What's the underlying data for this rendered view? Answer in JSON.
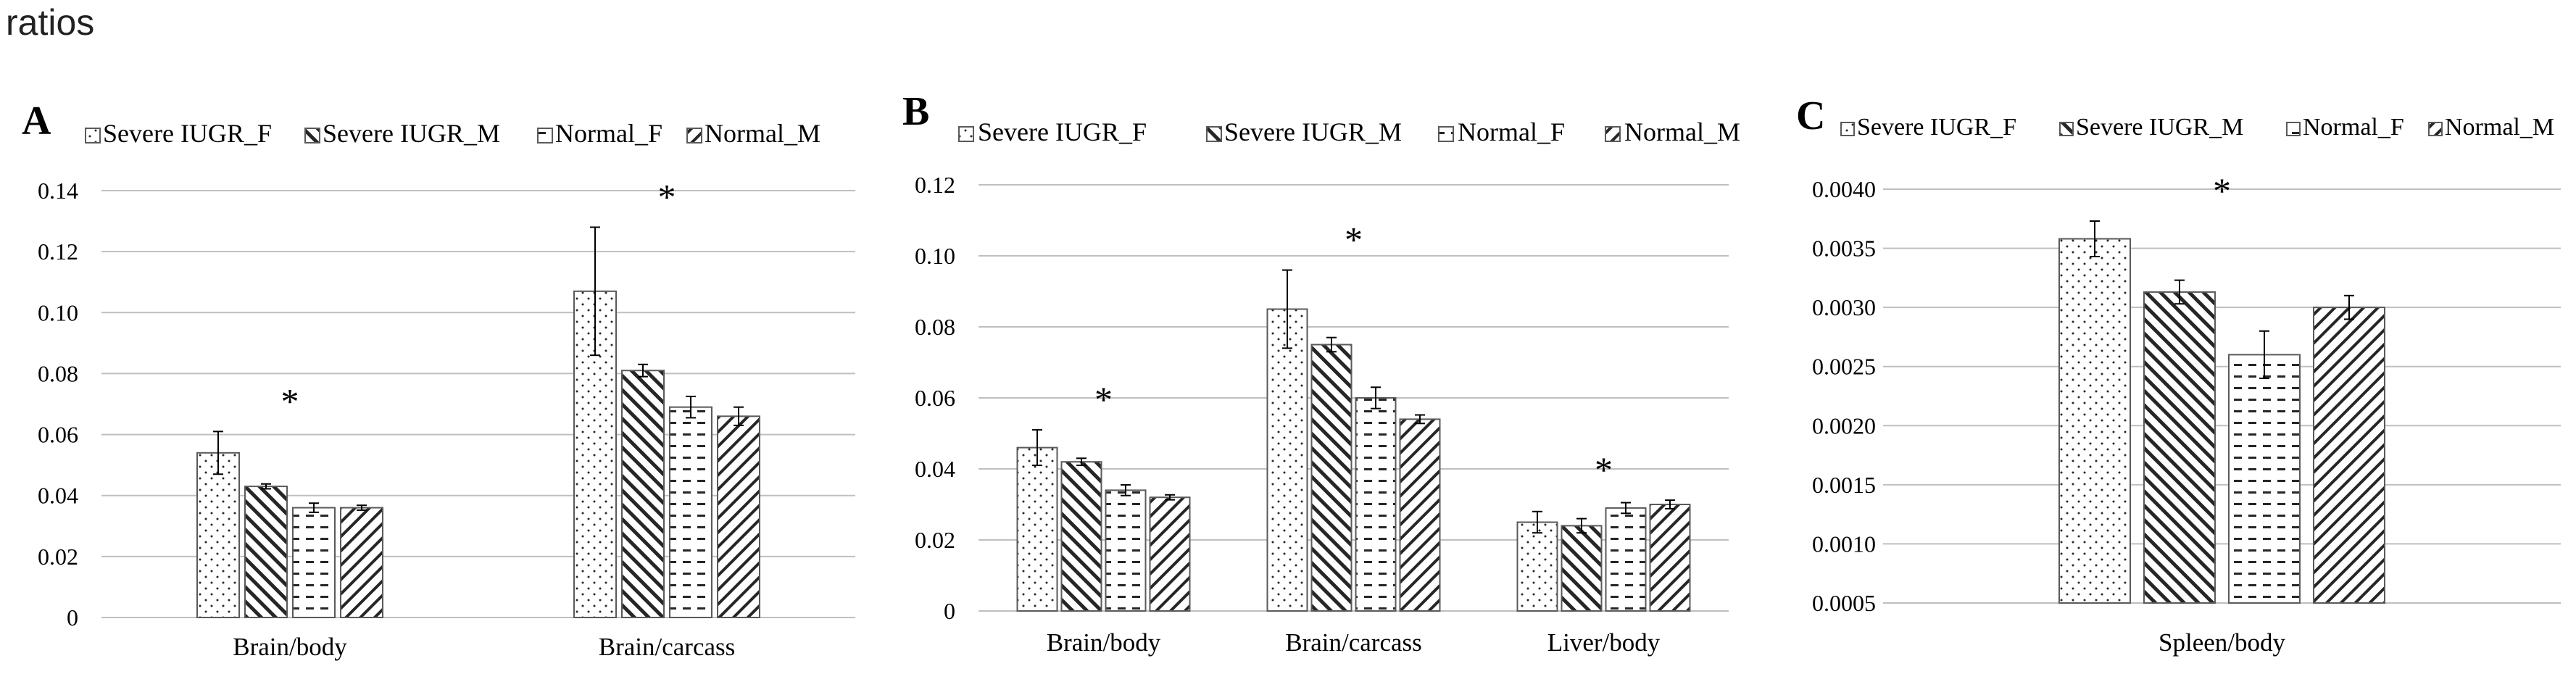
{
  "page_title": "ratios",
  "patterns": {
    "Severe IUGR_F": "dots",
    "Severe IUGR_M": "back-diagonal",
    "Normal_F": "dash-rows",
    "Normal_M": "fwd-diagonal"
  },
  "colors": {
    "axis": "#bfbfbf",
    "bar_stroke": "#5a5a5a",
    "pattern": "#262626",
    "text": "#000000"
  },
  "chart_data": [
    {
      "panel_label": "A",
      "type": "bar",
      "categories": [
        "Brain/body",
        "Brain/carcass"
      ],
      "legend": [
        "Severe IUGR_F",
        "Severe IUGR_M",
        "Normal_F",
        "Normal_M"
      ],
      "series": [
        {
          "name": "Severe IUGR_F",
          "values": [
            0.054,
            0.107
          ],
          "errors": [
            0.007,
            0.021
          ]
        },
        {
          "name": "Severe IUGR_M",
          "values": [
            0.043,
            0.081
          ],
          "errors": [
            0.0008,
            0.002
          ]
        },
        {
          "name": "Normal_F",
          "values": [
            0.036,
            0.069
          ],
          "errors": [
            0.0015,
            0.0035
          ]
        },
        {
          "name": "Normal_M",
          "values": [
            0.036,
            0.066
          ],
          "errors": [
            0.0008,
            0.003
          ]
        }
      ],
      "significance": [
        "*",
        "*"
      ],
      "ylim": [
        0,
        0.14
      ],
      "yticks": [
        0,
        0.02,
        0.04,
        0.06,
        0.08,
        0.1,
        0.12,
        0.14
      ],
      "ytick_labels": [
        "0",
        "0.02",
        "0.04",
        "0.06",
        "0.08",
        "0.10",
        "0.12",
        "0.14"
      ]
    },
    {
      "panel_label": "B",
      "type": "bar",
      "categories": [
        "Brain/body",
        "Brain/carcass",
        "Liver/body"
      ],
      "legend": [
        "Severe IUGR_F",
        "Severe IUGR_M",
        "Normal_F",
        "Normal_M"
      ],
      "series": [
        {
          "name": "Severe IUGR_F",
          "values": [
            0.046,
            0.085,
            0.025
          ],
          "errors": [
            0.005,
            0.011,
            0.003
          ]
        },
        {
          "name": "Severe IUGR_M",
          "values": [
            0.042,
            0.075,
            0.024
          ],
          "errors": [
            0.001,
            0.002,
            0.002
          ]
        },
        {
          "name": "Normal_F",
          "values": [
            0.034,
            0.06,
            0.029
          ],
          "errors": [
            0.0015,
            0.003,
            0.0015
          ]
        },
        {
          "name": "Normal_M",
          "values": [
            0.032,
            0.054,
            0.03
          ],
          "errors": [
            0.0007,
            0.0012,
            0.0012
          ]
        }
      ],
      "significance": [
        "*",
        "*",
        "*"
      ],
      "ylim": [
        0,
        0.12
      ],
      "yticks": [
        0,
        0.02,
        0.04,
        0.06,
        0.08,
        0.1,
        0.12
      ],
      "ytick_labels": [
        "0",
        "0.02",
        "0.04",
        "0.06",
        "0.08",
        "0.10",
        "0.12"
      ]
    },
    {
      "panel_label": "C",
      "type": "bar",
      "categories": [
        "Spleen/body"
      ],
      "legend": [
        "Severe IUGR_F",
        "Severe IUGR_M",
        "Normal_F",
        "Normal_M"
      ],
      "series": [
        {
          "name": "Severe IUGR_F",
          "values": [
            0.00358
          ],
          "errors": [
            0.00015
          ]
        },
        {
          "name": "Severe IUGR_M",
          "values": [
            0.00313
          ],
          "errors": [
            0.0001
          ]
        },
        {
          "name": "Normal_F",
          "values": [
            0.0026
          ],
          "errors": [
            0.0002
          ]
        },
        {
          "name": "Normal_M",
          "values": [
            0.003
          ],
          "errors": [
            0.0001
          ]
        }
      ],
      "significance": [
        "*"
      ],
      "ylim": [
        0.0005,
        0.004
      ],
      "yticks": [
        0.0005,
        0.001,
        0.0015,
        0.002,
        0.0025,
        0.003,
        0.0035,
        0.004
      ],
      "ytick_labels": [
        "0.0005",
        "0.0010",
        "0.0015",
        "0.0020",
        "0.0025",
        "0.0030",
        "0.0035",
        "0.0040"
      ]
    }
  ]
}
